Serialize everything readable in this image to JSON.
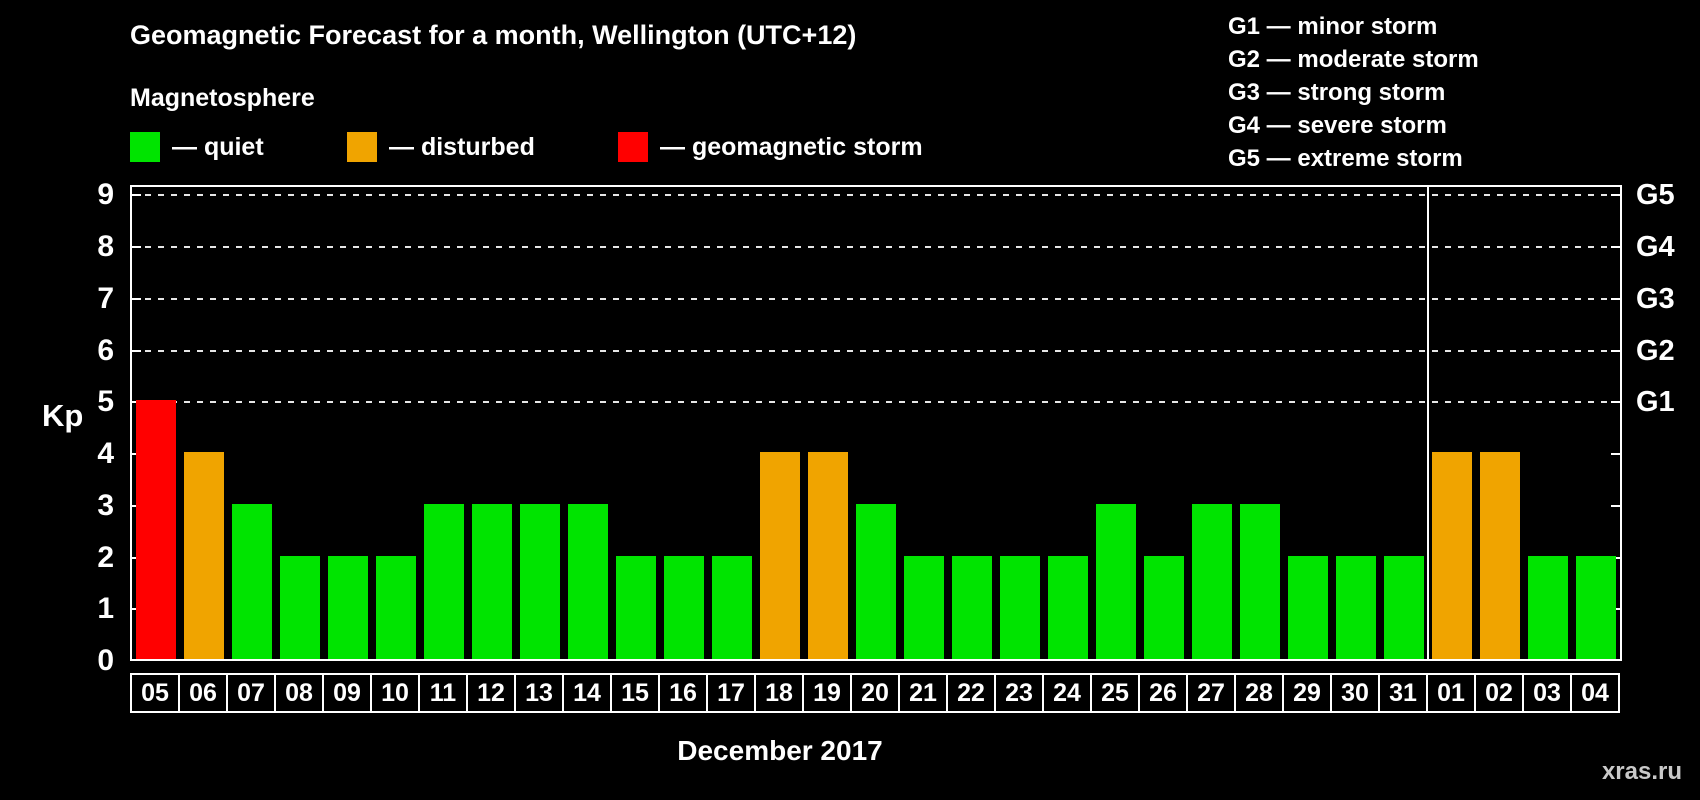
{
  "title": "Geomagnetic Forecast for a month, Wellington (UTC+12)",
  "subtitle": "Magnetosphere",
  "legend": {
    "items": [
      {
        "label": "— quiet",
        "status": "quiet"
      },
      {
        "label": "— disturbed",
        "status": "disturbed"
      },
      {
        "label": "— geomagnetic storm",
        "status": "storm"
      }
    ]
  },
  "storm_scale": [
    "G1 — minor storm",
    "G2 — moderate storm",
    "G3 — strong storm",
    "G4 — severe storm",
    "G5 — extreme storm"
  ],
  "watermark": "xras.ru",
  "chart_data": {
    "type": "bar",
    "title": "Geomagnetic Forecast for a month, Wellington (UTC+12)",
    "xlabel": "December 2017",
    "ylabel": "Kp",
    "ylim": [
      0,
      9
    ],
    "yticks": [
      0,
      1,
      2,
      3,
      4,
      5,
      6,
      7,
      8,
      9
    ],
    "gridlines_y": [
      5,
      6,
      7,
      8,
      9
    ],
    "grid": "dashed horizontal lines at G storm levels",
    "legend_position": "top",
    "right_axis": [
      {
        "label": "G1",
        "kp": 5
      },
      {
        "label": "G2",
        "kp": 6
      },
      {
        "label": "G3",
        "kp": 7
      },
      {
        "label": "G4",
        "kp": 8
      },
      {
        "label": "G5",
        "kp": 9
      }
    ],
    "month_boundary_after_category": "31",
    "categories": [
      "05",
      "06",
      "07",
      "08",
      "09",
      "10",
      "11",
      "12",
      "13",
      "14",
      "15",
      "16",
      "17",
      "18",
      "19",
      "20",
      "21",
      "22",
      "23",
      "24",
      "25",
      "26",
      "27",
      "28",
      "29",
      "30",
      "31",
      "01",
      "02",
      "03",
      "04"
    ],
    "values": [
      5,
      4,
      3,
      2,
      2,
      2,
      3,
      3,
      3,
      3,
      2,
      2,
      2,
      4,
      4,
      3,
      2,
      2,
      2,
      2,
      3,
      2,
      3,
      3,
      2,
      2,
      2,
      4,
      4,
      2,
      2
    ],
    "statuses": [
      "storm",
      "disturbed",
      "quiet",
      "quiet",
      "quiet",
      "quiet",
      "quiet",
      "quiet",
      "quiet",
      "quiet",
      "quiet",
      "quiet",
      "quiet",
      "disturbed",
      "disturbed",
      "quiet",
      "quiet",
      "quiet",
      "quiet",
      "quiet",
      "quiet",
      "quiet",
      "quiet",
      "quiet",
      "quiet",
      "quiet",
      "quiet",
      "disturbed",
      "disturbed",
      "quiet",
      "quiet"
    ],
    "status_colors": {
      "quiet": "#00e400",
      "disturbed": "#f0a400",
      "storm": "#ff0000"
    }
  }
}
